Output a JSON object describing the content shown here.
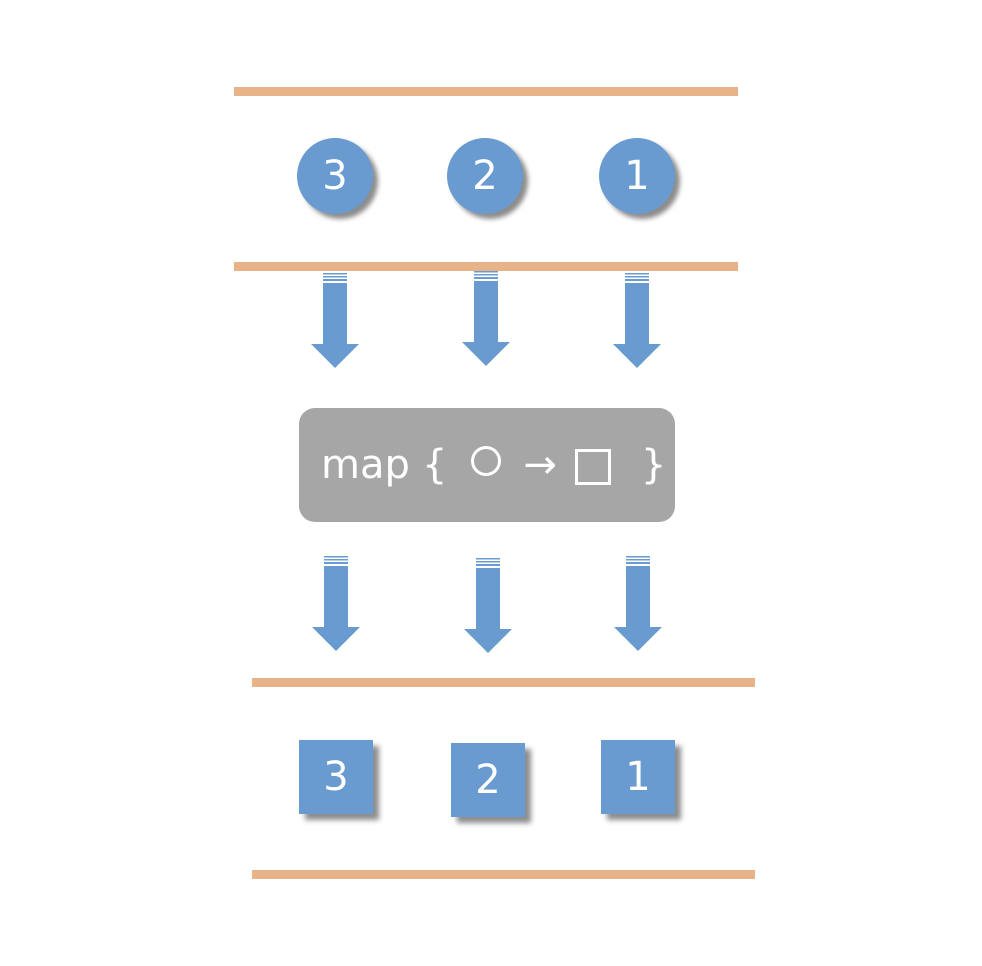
{
  "input_stream": {
    "items": [
      {
        "label": "3"
      },
      {
        "label": "2"
      },
      {
        "label": "1"
      }
    ]
  },
  "operator": {
    "keyword": "map",
    "brace_open": "{",
    "input_shape": "circle",
    "arrow_glyph": "→",
    "output_shape": "square",
    "brace_close": "}"
  },
  "output_stream": {
    "items": [
      {
        "label": "3"
      },
      {
        "label": "2"
      },
      {
        "label": "1"
      }
    ]
  },
  "colors": {
    "rail": "#E9B38A",
    "item_fill": "#6A9BD0",
    "operator_fill": "#A6A6A6",
    "text": "#FFFFFF"
  }
}
